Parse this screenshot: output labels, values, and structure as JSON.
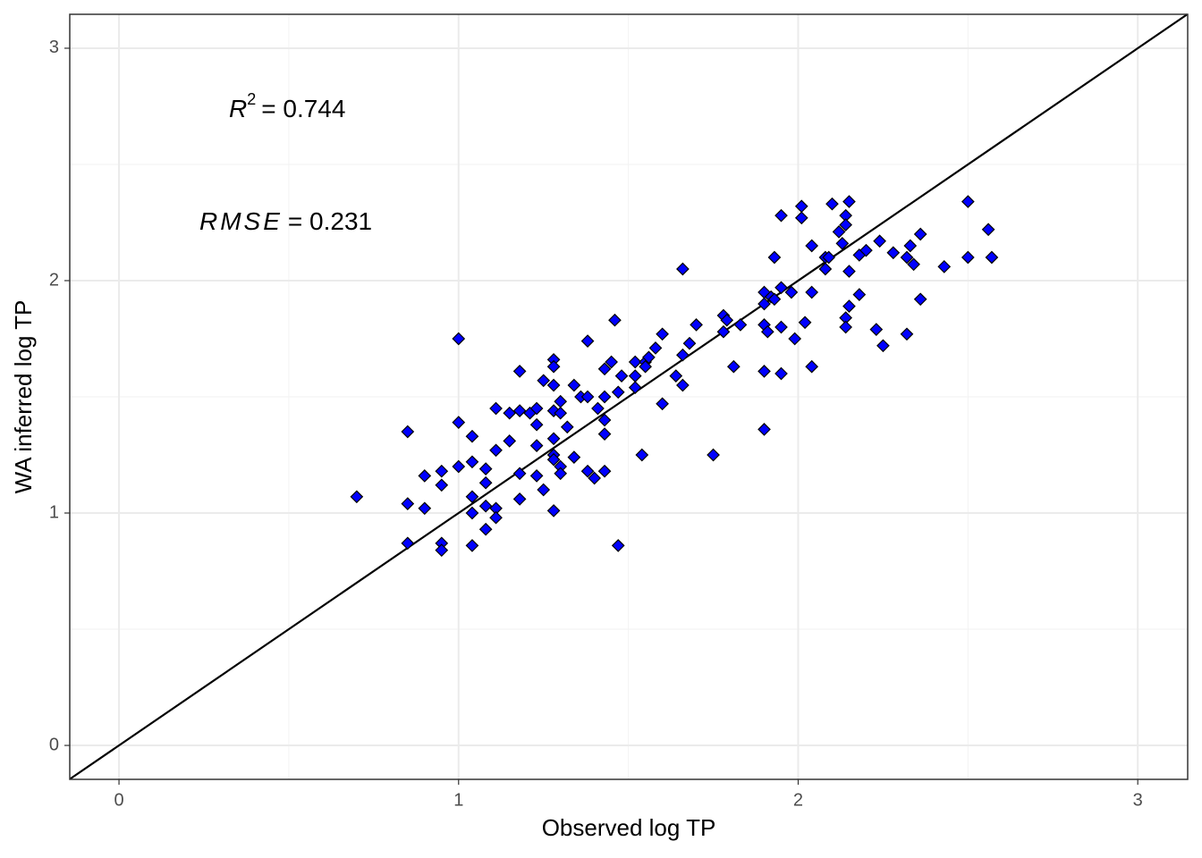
{
  "chart_data": {
    "type": "scatter",
    "x_label": "Observed log TP",
    "y_label": "WA inferred log TP",
    "annotations": [
      {
        "symbol": "R",
        "exponent": "2",
        "text": "= 0.744"
      },
      {
        "symbol": "RMSE",
        "text": "= 0.231"
      }
    ],
    "xlim": [
      -0.145,
      3.147
    ],
    "ylim": [
      -0.146,
      3.146
    ],
    "xticks": [
      0,
      1,
      2,
      3
    ],
    "yticks": [
      0,
      1,
      2,
      3
    ],
    "minor_grid": [
      0.5,
      1.5,
      2.5
    ],
    "grid": true,
    "identity_line": true,
    "color": "#0000ff",
    "edge_color": "#000000",
    "x": [
      0.7,
      0.85,
      0.85,
      0.85,
      0.9,
      0.9,
      0.95,
      0.95,
      0.95,
      0.95,
      1.0,
      1.0,
      1.0,
      1.04,
      1.04,
      1.04,
      1.04,
      1.04,
      1.08,
      1.08,
      1.08,
      1.08,
      1.11,
      1.11,
      1.11,
      1.11,
      1.15,
      1.15,
      1.18,
      1.18,
      1.18,
      1.18,
      1.21,
      1.23,
      1.23,
      1.23,
      1.23,
      1.25,
      1.25,
      1.28,
      1.28,
      1.28,
      1.28,
      1.28,
      1.28,
      1.28,
      1.28,
      1.3,
      1.3,
      1.3,
      1.3,
      1.32,
      1.34,
      1.34,
      1.36,
      1.38,
      1.38,
      1.38,
      1.4,
      1.41,
      1.43,
      1.43,
      1.43,
      1.43,
      1.43,
      1.45,
      1.46,
      1.47,
      1.47,
      1.48,
      1.52,
      1.52,
      1.52,
      1.54,
      1.55,
      1.55,
      1.56,
      1.58,
      1.6,
      1.6,
      1.64,
      1.66,
      1.66,
      1.66,
      1.68,
      1.7,
      1.75,
      1.78,
      1.78,
      1.79,
      1.81,
      1.83,
      1.9,
      1.9,
      1.9,
      1.9,
      1.9,
      1.91,
      1.92,
      1.93,
      1.93,
      1.95,
      1.95,
      1.95,
      1.95,
      1.98,
      1.99,
      2.01,
      2.01,
      2.02,
      2.04,
      2.04,
      2.04,
      2.08,
      2.08,
      2.09,
      2.1,
      2.12,
      2.13,
      2.14,
      2.14,
      2.15,
      2.15,
      2.15,
      2.14,
      2.14,
      2.18,
      2.18,
      2.2,
      2.23,
      2.24,
      2.25,
      2.28,
      2.32,
      2.32,
      2.33,
      2.34,
      2.36,
      2.36,
      2.43,
      2.5,
      2.5,
      2.56,
      2.57
    ],
    "values": [
      1.07,
      1.35,
      1.04,
      0.87,
      1.16,
      1.02,
      1.18,
      1.12,
      0.87,
      0.84,
      1.75,
      1.39,
      1.2,
      1.33,
      1.22,
      1.07,
      1.0,
      0.86,
      1.19,
      1.13,
      1.03,
      0.93,
      1.45,
      1.27,
      1.02,
      0.98,
      1.43,
      1.31,
      1.61,
      1.44,
      1.17,
      1.06,
      1.43,
      1.45,
      1.38,
      1.29,
      1.16,
      1.57,
      1.1,
      1.66,
      1.63,
      1.55,
      1.44,
      1.32,
      1.25,
      1.23,
      1.01,
      1.48,
      1.43,
      1.2,
      1.17,
      1.37,
      1.55,
      1.24,
      1.5,
      1.74,
      1.5,
      1.18,
      1.15,
      1.45,
      1.62,
      1.5,
      1.4,
      1.34,
      1.18,
      1.65,
      1.83,
      1.52,
      0.86,
      1.59,
      1.65,
      1.59,
      1.54,
      1.25,
      1.65,
      1.63,
      1.67,
      1.71,
      1.77,
      1.47,
      1.59,
      2.05,
      1.68,
      1.55,
      1.73,
      1.81,
      1.25,
      1.85,
      1.78,
      1.83,
      1.63,
      1.81,
      1.95,
      1.9,
      1.81,
      1.61,
      1.36,
      1.78,
      1.93,
      2.1,
      1.92,
      2.28,
      1.97,
      1.8,
      1.6,
      1.95,
      1.75,
      2.27,
      2.32,
      1.82,
      2.15,
      1.95,
      1.63,
      2.05,
      2.1,
      2.1,
      2.33,
      2.21,
      2.16,
      2.28,
      2.24,
      2.34,
      1.89,
      2.04,
      1.84,
      1.8,
      2.11,
      1.94,
      2.13,
      1.79,
      2.17,
      1.72,
      2.12,
      2.1,
      1.77,
      2.15,
      2.07,
      2.2,
      1.92,
      2.06,
      2.34,
      2.1,
      2.22,
      2.1
    ]
  }
}
